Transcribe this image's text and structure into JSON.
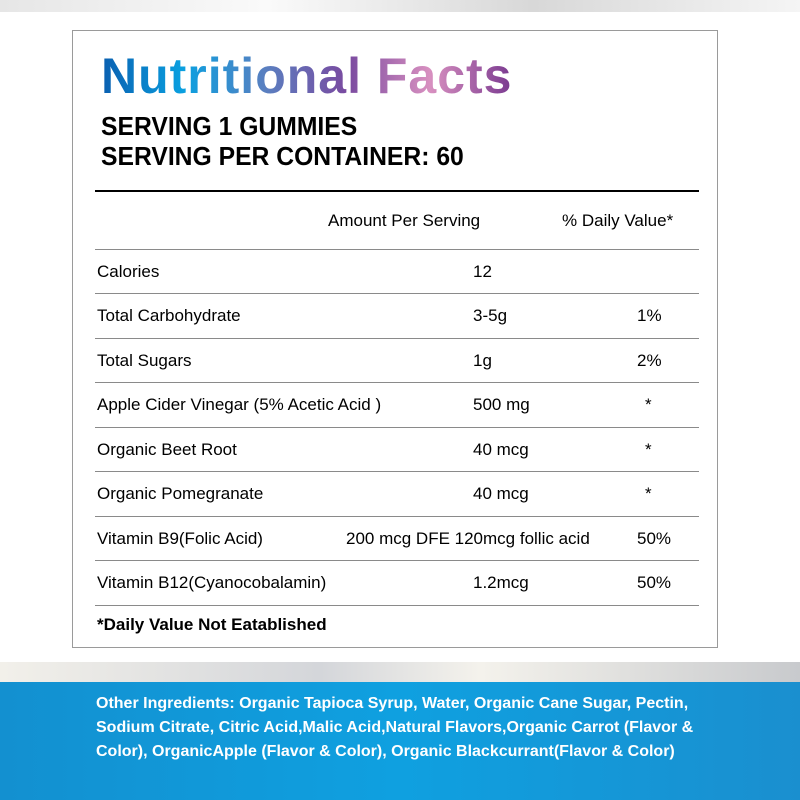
{
  "title": "Nutritional Facts",
  "serving": "SERVING 1 GUMMIES",
  "servings_per_container": "SERVING PER CONTAINER: 60",
  "headers": {
    "amount": "Amount Per Serving",
    "dv": "% Daily Value*"
  },
  "rows": [
    {
      "name": "Calories",
      "amount": "12",
      "dv": ""
    },
    {
      "name": "Total Carbohydrate",
      "amount": "3-5g",
      "dv": "1%"
    },
    {
      "name": "Total Sugars",
      "amount": "1g",
      "dv": "2%"
    },
    {
      "name": "Apple Cider Vinegar (5% Acetic Acid )",
      "amount": "500 mg",
      "dv": "*"
    },
    {
      "name": "Organic Beet Root",
      "amount": "40 mcg",
      "dv": "*"
    },
    {
      "name": "Organic Pomegranate",
      "amount": "40 mcg",
      "dv": "*"
    },
    {
      "name": "Vitamin B9(Folic Acid)",
      "amount": "200 mcg DFE 120mcg follic acid",
      "dv": "50%"
    },
    {
      "name": "Vitamin B12(Cyanocobalamin)",
      "amount": "1.2mcg",
      "dv": "50%"
    }
  ],
  "footnote": "*Daily Value Not Eatablished",
  "other_ingredients": "Other Ingredients: Organic Tapioca Syrup, Water, Organic Cane Sugar, Pectin, Sodium Citrate, Citric Acid,Malic Acid,Natural Flavors,Organic Carrot (Flavor & Color), OrganicApple (Flavor & Color), Organic Blackcurrant(Flavor & Color)",
  "colors": {
    "banner_blue": "#0fa0e0"
  }
}
